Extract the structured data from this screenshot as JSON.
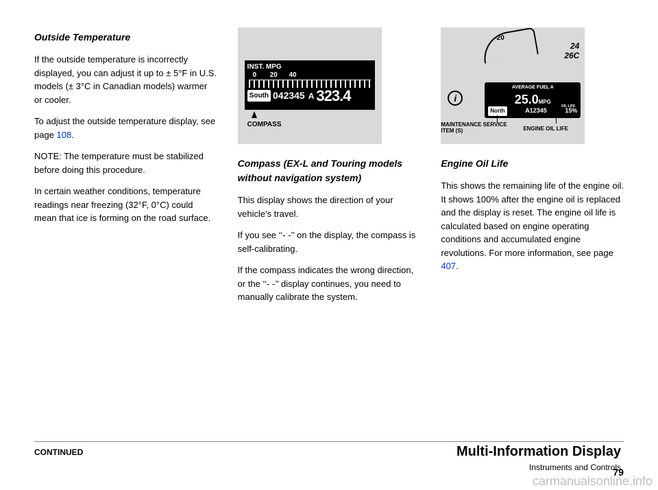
{
  "col1": {
    "heading": "Outside Temperature",
    "p1": "If the outside temperature is incorrectly displayed, you can adjust it up to ± 5°F in U.S. models (± 3°C in Canadian models) warmer or cooler.",
    "p2_a": "To adjust the outside temperature display, see page ",
    "p2_link": "108",
    "p2_b": ".",
    "note": "NOTE: The temperature must be stabilized before doing this procedure.",
    "p3": "In certain weather conditions, temperature readings near freezing (32°F, 0°C) could mean that ice is forming on the road surface."
  },
  "fig1": {
    "inst": "INST. MPG",
    "scale_0": "0",
    "scale_20": "20",
    "scale_40": "40",
    "south": "South",
    "odo": "042345",
    "tripA": "A",
    "tripnum": "323.4",
    "compass_label": "COMPASS"
  },
  "col2": {
    "heading": "Compass (EX-L and Touring models without navigation system)",
    "p1": "This display shows the direction of your vehicle's travel.",
    "p2": "If you see ‘‘- -’’ on the display, the compass is self-calibrating.",
    "p3": "If the compass indicates the wrong direction, or the ‘‘- -’’ display continues, you need to manually calibrate the system."
  },
  "fig2": {
    "avg": "AVERAGE FUEL A",
    "big": "25.0",
    "mpg": "MPG",
    "north": "North",
    "code": "A12345",
    "oil_lbl": "OIL LIFE",
    "pct": "15%",
    "maint_label": "MAINTENANCE SERVICE ITEM (S)",
    "eol_label": "ENGINE OIL LIFE",
    "minus20": "-20",
    "n24": "24",
    "n26": "26C",
    "i": "i"
  },
  "col3": {
    "heading": "Engine Oil Life",
    "p1": "This shows the remaining life of the engine oil. It shows 100% after the engine oil is replaced and the display is reset. The engine oil life is calculated based on engine operating conditions and accumulated engine revolutions. For more information, see page",
    "link": "407",
    "p1b": "."
  },
  "footer": {
    "section_title": "Multi-Information Display",
    "continued": "CONTINUED",
    "subcat": "Instruments and Controls",
    "page": "79",
    "watermark": "carmanualsonline.info"
  }
}
